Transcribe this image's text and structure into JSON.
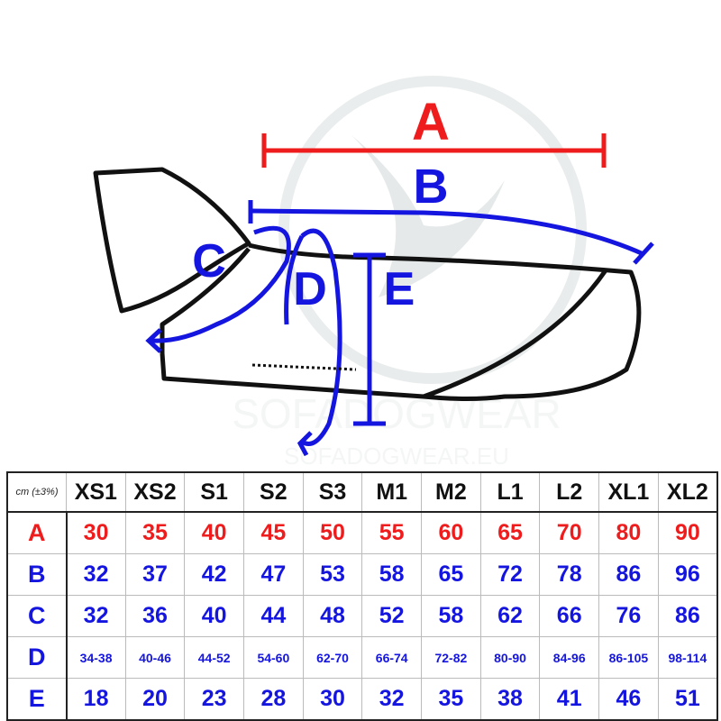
{
  "diagram": {
    "labels": {
      "A": "A",
      "B": "B",
      "C": "C",
      "D": "D",
      "E": "E"
    },
    "watermark": {
      "brand": "SOFADOGWEAR",
      "url": "SOFADOGWEAR.EU"
    },
    "colors": {
      "red": "#ee1c1c",
      "blue": "#1515e0",
      "outline": "#111111"
    }
  },
  "table": {
    "corner": "cm (±3%)",
    "sizes": [
      "XS1",
      "XS2",
      "S1",
      "S2",
      "S3",
      "M1",
      "M2",
      "L1",
      "L2",
      "XL1",
      "XL2"
    ],
    "rows": [
      {
        "label": "A",
        "color": "#ee1c1c",
        "values": [
          "30",
          "35",
          "40",
          "45",
          "50",
          "55",
          "60",
          "65",
          "70",
          "80",
          "90"
        ]
      },
      {
        "label": "B",
        "color": "#1515e0",
        "values": [
          "32",
          "37",
          "42",
          "47",
          "53",
          "58",
          "65",
          "72",
          "78",
          "86",
          "96"
        ]
      },
      {
        "label": "C",
        "color": "#1515e0",
        "values": [
          "32",
          "36",
          "40",
          "44",
          "48",
          "52",
          "58",
          "62",
          "66",
          "76",
          "86"
        ]
      },
      {
        "label": "D",
        "color": "#1515e0",
        "values": [
          "34-38",
          "40-46",
          "44-52",
          "54-60",
          "62-70",
          "66-74",
          "72-82",
          "80-90",
          "84-96",
          "86-105",
          "98-114"
        ]
      },
      {
        "label": "E",
        "color": "#1515e0",
        "values": [
          "18",
          "20",
          "23",
          "28",
          "30",
          "32",
          "35",
          "38",
          "41",
          "46",
          "51"
        ]
      }
    ]
  }
}
